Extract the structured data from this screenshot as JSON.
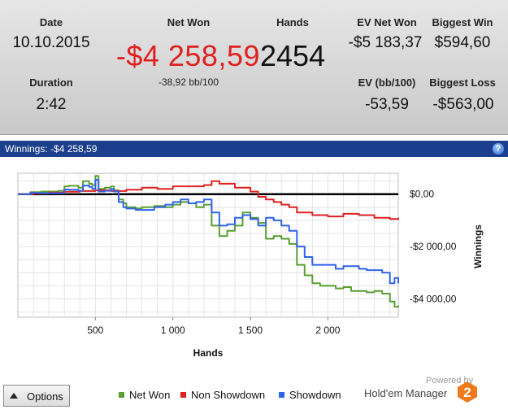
{
  "summary": {
    "date_label": "Date",
    "date_value": "10.10.2015",
    "duration_label": "Duration",
    "duration_value": "2:42",
    "net_won_label": "Net Won",
    "net_won_value": "-$4 258,59",
    "bb_per_100": "-38,92 bb/100",
    "hands_label": "Hands",
    "hands_value": "2454",
    "ev_net_won_label": "EV Net Won",
    "ev_net_won_value": "-$5 183,37",
    "ev_bb_label": "EV (bb/100)",
    "ev_bb_value": "-53,59",
    "biggest_win_label": "Biggest Win",
    "biggest_win_value": "$594,60",
    "biggest_loss_label": "Biggest Loss",
    "biggest_loss_value": "-$563,00"
  },
  "panel": {
    "title": "Winnings: -$4 258,59",
    "help_glyph": "?"
  },
  "options_label": "Options",
  "legend": [
    {
      "label": "Net Won",
      "color": "#5a9e32"
    },
    {
      "label": "Non Showdown",
      "color": "#e02020"
    },
    {
      "label": "Showdown",
      "color": "#2f63e8"
    }
  ],
  "branding": {
    "powered_by": "Powered by",
    "product": "Hold'em Manager",
    "logo_digit": "2"
  },
  "chart_data": {
    "type": "line",
    "xlabel": "Hands",
    "ylabel": "Winnings",
    "xlim": [
      0,
      2454
    ],
    "ylim": [
      -4700,
      800
    ],
    "x_ticks": [
      500,
      1000,
      1500,
      2000
    ],
    "x_tick_labels": [
      "500",
      "1 000",
      "1 500",
      "2 000"
    ],
    "y_ticks": [
      0,
      -2000,
      -4000
    ],
    "y_tick_labels": [
      "$0,00",
      "-$2 000,00",
      "-$4 000,00"
    ],
    "grid": true,
    "zero_line": true,
    "legend_position": "bottom",
    "series": [
      {
        "name": "Net Won",
        "color": "#5a9e32",
        "x": [
          0,
          80,
          150,
          260,
          300,
          330,
          390,
          420,
          460,
          480,
          500,
          520,
          560,
          600,
          620,
          650,
          680,
          700,
          760,
          800,
          880,
          950,
          1000,
          1050,
          1100,
          1150,
          1200,
          1250,
          1300,
          1350,
          1400,
          1450,
          1500,
          1550,
          1600,
          1650,
          1700,
          1750,
          1800,
          1850,
          1900,
          1950,
          2000,
          2050,
          2100,
          2150,
          2200,
          2250,
          2300,
          2350,
          2400,
          2430,
          2454
        ],
        "y": [
          0,
          80,
          100,
          130,
          300,
          320,
          250,
          500,
          400,
          350,
          700,
          200,
          250,
          300,
          150,
          -200,
          -350,
          -500,
          -550,
          -500,
          -450,
          -500,
          -400,
          -300,
          -350,
          -500,
          -400,
          -1200,
          -1600,
          -1400,
          -1200,
          -700,
          -900,
          -1100,
          -1700,
          -1600,
          -1700,
          -1900,
          -2700,
          -3100,
          -3400,
          -3500,
          -3500,
          -3600,
          -3550,
          -3700,
          -3700,
          -3750,
          -3700,
          -3800,
          -4100,
          -4300,
          -4258.59
        ]
      },
      {
        "name": "Non Showdown",
        "color": "#e02020",
        "x": [
          0,
          100,
          200,
          300,
          400,
          500,
          600,
          700,
          800,
          900,
          1000,
          1100,
          1200,
          1250,
          1300,
          1400,
          1500,
          1550,
          1600,
          1650,
          1700,
          1750,
          1800,
          1900,
          2000,
          2100,
          2200,
          2300,
          2400,
          2454
        ],
        "y": [
          0,
          30,
          60,
          90,
          120,
          150,
          120,
          170,
          250,
          200,
          300,
          300,
          350,
          500,
          400,
          250,
          100,
          -100,
          -200,
          -300,
          -400,
          -500,
          -700,
          -800,
          -850,
          -750,
          -800,
          -900,
          -950,
          -900
        ]
      },
      {
        "name": "Showdown",
        "color": "#2f63e8",
        "x": [
          0,
          80,
          150,
          260,
          300,
          330,
          390,
          420,
          460,
          480,
          500,
          520,
          560,
          600,
          620,
          650,
          680,
          700,
          760,
          800,
          880,
          950,
          1000,
          1050,
          1100,
          1150,
          1200,
          1250,
          1300,
          1350,
          1400,
          1450,
          1500,
          1550,
          1600,
          1650,
          1700,
          1750,
          1800,
          1850,
          1900,
          1950,
          2000,
          2050,
          2100,
          2150,
          2200,
          2250,
          2300,
          2350,
          2400,
          2430,
          2454
        ],
        "y": [
          0,
          50,
          40,
          40,
          180,
          170,
          130,
          330,
          280,
          200,
          550,
          100,
          130,
          200,
          100,
          -300,
          -500,
          -550,
          -600,
          -600,
          -500,
          -400,
          -300,
          -200,
          -350,
          -300,
          -200,
          -700,
          -1200,
          -1150,
          -900,
          -800,
          -950,
          -1200,
          -900,
          -1000,
          -1200,
          -1400,
          -2000,
          -2400,
          -2700,
          -2700,
          -2700,
          -2850,
          -2750,
          -2750,
          -2850,
          -2900,
          -2900,
          -3000,
          -3400,
          -3200,
          -3400
        ]
      }
    ]
  }
}
